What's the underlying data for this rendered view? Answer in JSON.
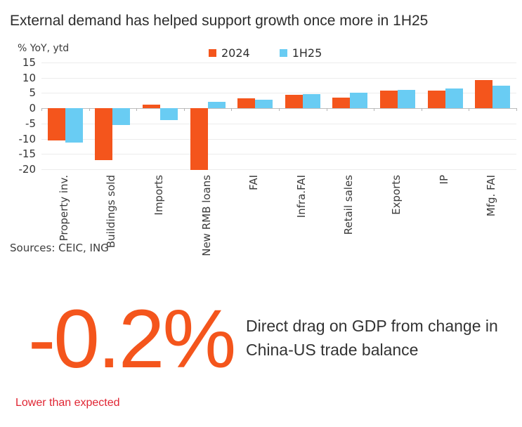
{
  "title": "External demand has helped support growth once more in 1H25",
  "chart_data": {
    "type": "bar",
    "y_axis_label": "% YoY, ytd",
    "categories": [
      "Property inv.",
      "Buildings sold",
      "Imports",
      "New RMB loans",
      "FAI",
      "Infra.FAI",
      "Retail sales",
      "Exports",
      "IP",
      "Mfg. FAI"
    ],
    "series": [
      {
        "name": "2024",
        "color": "#F4551C",
        "values": [
          -10.6,
          -17.1,
          1.1,
          -20.3,
          3.2,
          4.4,
          3.5,
          5.9,
          5.8,
          9.2
        ]
      },
      {
        "name": "1H25",
        "color": "#69CCF3",
        "values": [
          -11.2,
          -5.5,
          -3.9,
          2.1,
          2.8,
          4.6,
          5.0,
          6.0,
          6.4,
          7.5
        ]
      }
    ],
    "yticks": [
      15,
      10,
      5,
      0,
      -5,
      -10,
      -15,
      -20
    ],
    "ylim": [
      -20,
      15
    ],
    "grid": true,
    "legend_position": "top-center"
  },
  "sources": "Sources: CEIC, ING",
  "stat": {
    "value": "-0.2%",
    "description": "Direct drag on GDP from change in China-US trade balance",
    "note": "Lower than expected",
    "accent_color": "#F4551C",
    "note_color": "#E02533"
  }
}
